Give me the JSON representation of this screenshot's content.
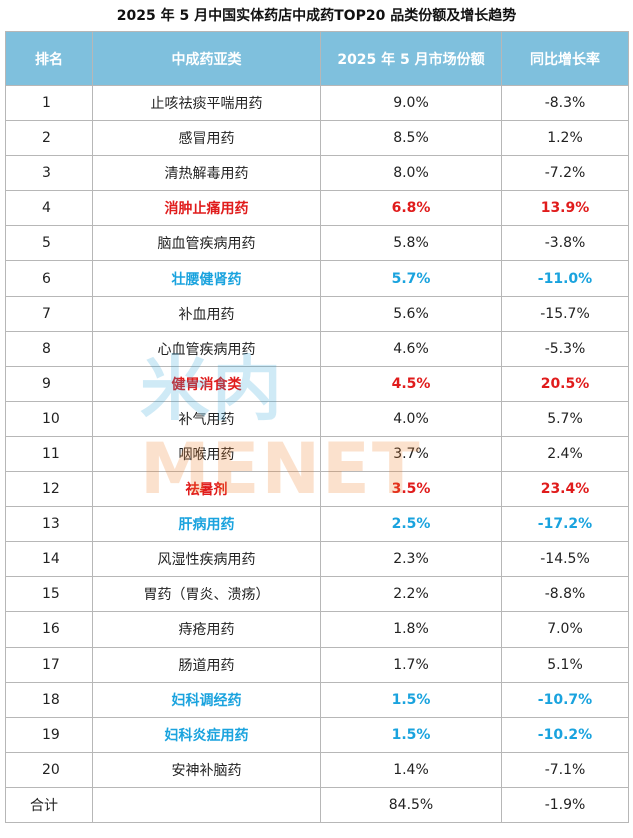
{
  "chart_data": {
    "type": "table",
    "title": "2025 年 5 月中国实体药店中成药TOP20 品类份额及增长趋势",
    "columns": [
      "排名",
      "中成药亚类",
      "2025 年 5 月市场份额",
      "同比增长率"
    ],
    "rows": [
      {
        "rank": "1",
        "category": "止咳祛痰平喘用药",
        "share": "9.0%",
        "growth": "-8.3%",
        "highlight": ""
      },
      {
        "rank": "2",
        "category": "感冒用药",
        "share": "8.5%",
        "growth": "1.2%",
        "highlight": ""
      },
      {
        "rank": "3",
        "category": "清热解毒用药",
        "share": "8.0%",
        "growth": "-7.2%",
        "highlight": ""
      },
      {
        "rank": "4",
        "category": "消肿止痛用药",
        "share": "6.8%",
        "growth": "13.9%",
        "highlight": "red"
      },
      {
        "rank": "5",
        "category": "脑血管疾病用药",
        "share": "5.8%",
        "growth": "-3.8%",
        "highlight": ""
      },
      {
        "rank": "6",
        "category": "壮腰健肾药",
        "share": "5.7%",
        "growth": "-11.0%",
        "highlight": "blue"
      },
      {
        "rank": "7",
        "category": "补血用药",
        "share": "5.6%",
        "growth": "-15.7%",
        "highlight": ""
      },
      {
        "rank": "8",
        "category": "心血管疾病用药",
        "share": "4.6%",
        "growth": "-5.3%",
        "highlight": ""
      },
      {
        "rank": "9",
        "category": "健胃消食类",
        "share": "4.5%",
        "growth": "20.5%",
        "highlight": "red"
      },
      {
        "rank": "10",
        "category": "补气用药",
        "share": "4.0%",
        "growth": "5.7%",
        "highlight": ""
      },
      {
        "rank": "11",
        "category": "咽喉用药",
        "share": "3.7%",
        "growth": "2.4%",
        "highlight": ""
      },
      {
        "rank": "12",
        "category": "祛暑剂",
        "share": "3.5%",
        "growth": "23.4%",
        "highlight": "red"
      },
      {
        "rank": "13",
        "category": "肝病用药",
        "share": "2.5%",
        "growth": "-17.2%",
        "highlight": "blue"
      },
      {
        "rank": "14",
        "category": "风湿性疾病用药",
        "share": "2.3%",
        "growth": "-14.5%",
        "highlight": ""
      },
      {
        "rank": "15",
        "category": "胃药（胃炎、溃疡）",
        "share": "2.2%",
        "growth": "-8.8%",
        "highlight": ""
      },
      {
        "rank": "16",
        "category": "痔疮用药",
        "share": "1.8%",
        "growth": "7.0%",
        "highlight": ""
      },
      {
        "rank": "17",
        "category": "肠道用药",
        "share": "1.7%",
        "growth": "5.1%",
        "highlight": ""
      },
      {
        "rank": "18",
        "category": "妇科调经药",
        "share": "1.5%",
        "growth": "-10.7%",
        "highlight": "blue"
      },
      {
        "rank": "19",
        "category": "妇科炎症用药",
        "share": "1.5%",
        "growth": "-10.2%",
        "highlight": "blue"
      },
      {
        "rank": "20",
        "category": "安神补脑药",
        "share": "1.4%",
        "growth": "-7.1%",
        "highlight": ""
      }
    ],
    "total": {
      "rank": "合计",
      "category": "",
      "share": "84.5%",
      "growth": "-1.9%"
    }
  },
  "colors": {
    "header_bg": "#7fc0dd",
    "highlight_red": "#e01c1c",
    "highlight_blue": "#1aa3de"
  },
  "watermark": {
    "text_a": "米内",
    "text_b": "MENET"
  }
}
